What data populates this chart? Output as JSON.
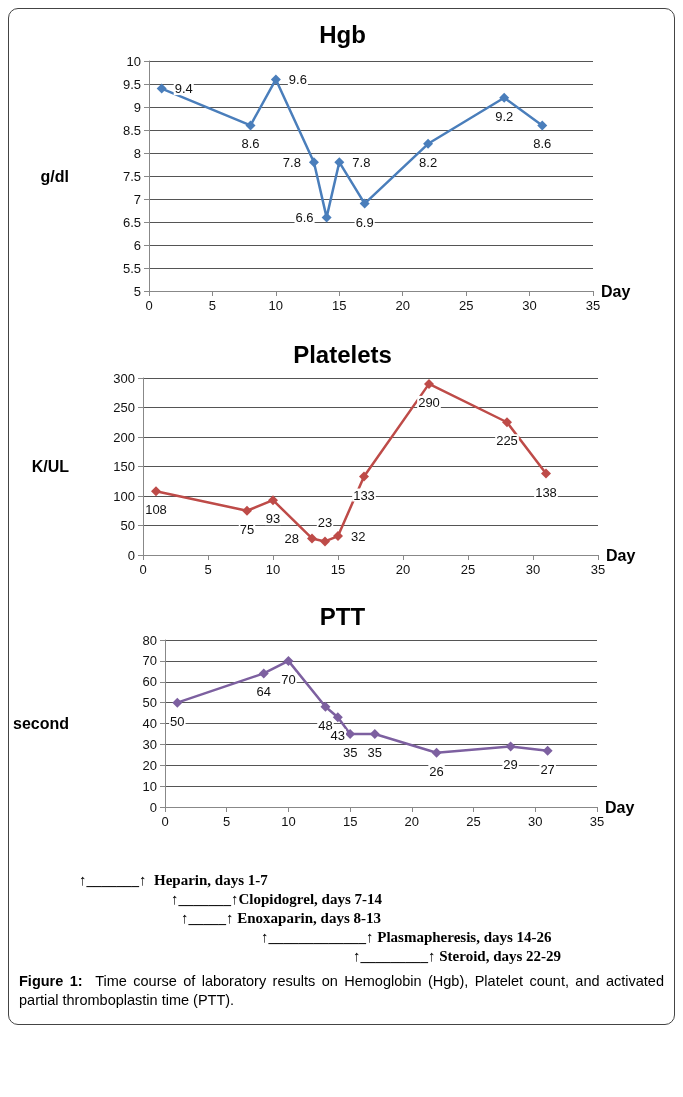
{
  "chart_data": [
    {
      "type": "line",
      "title": "Hgb",
      "ylabel": "g/dl",
      "xlabel": "Day",
      "x": [
        1,
        8,
        10,
        13,
        14,
        15,
        17,
        22,
        28,
        31
      ],
      "series": [
        {
          "color": "#4a7ebb",
          "values": [
            9.4,
            8.6,
            9.6,
            7.8,
            6.6,
            7.8,
            6.9,
            8.2,
            9.2,
            8.6
          ]
        }
      ],
      "xlim": [
        0,
        35
      ],
      "xticks": [
        0,
        5,
        10,
        15,
        20,
        25,
        30,
        35
      ],
      "ylim": [
        5,
        10
      ],
      "yticks": [
        5,
        5.5,
        6,
        6.5,
        7,
        7.5,
        8,
        8.5,
        9,
        9.5,
        10
      ],
      "grid": "y",
      "marker": "diamond",
      "line_style": "solid",
      "data_labels": true
    },
    {
      "type": "line",
      "title": "Platelets",
      "ylabel": "K/UL",
      "xlabel": "Day",
      "x": [
        1,
        8,
        10,
        13,
        14,
        15,
        17,
        22,
        28,
        31
      ],
      "series": [
        {
          "color": "#be4b48",
          "values": [
            108,
            75,
            93,
            28,
            23,
            32,
            133,
            290,
            225,
            138
          ]
        }
      ],
      "xlim": [
        0,
        35
      ],
      "xticks": [
        0,
        5,
        10,
        15,
        20,
        25,
        30,
        35
      ],
      "ylim": [
        0,
        300
      ],
      "yticks": [
        0,
        50,
        100,
        150,
        200,
        250,
        300
      ],
      "grid": "y",
      "marker": "diamond",
      "line_style": "solid",
      "data_labels": true
    },
    {
      "type": "line",
      "title": "PTT",
      "ylabel": "second",
      "xlabel": "Day",
      "x": [
        1,
        8,
        10,
        13,
        14,
        15,
        17,
        22,
        28,
        31
      ],
      "series": [
        {
          "color": "#7d60a0",
          "values": [
            50,
            64,
            70,
            48,
            43,
            35,
            35,
            26,
            29,
            27
          ]
        }
      ],
      "xlim": [
        0,
        35
      ],
      "xticks": [
        0,
        5,
        10,
        15,
        20,
        25,
        30,
        35
      ],
      "ylim": [
        0,
        80
      ],
      "yticks": [
        0,
        10,
        20,
        30,
        40,
        50,
        60,
        70,
        80
      ],
      "grid": "y",
      "marker": "diamond",
      "line_style": "solid",
      "data_labels": true,
      "annotations": [
        "↑_______↑  Heparin, days 1-7",
        "↑_______↑Clopidogrel, days 7-14",
        "↑_____↑ Enoxaparin, days 8-13",
        "↑_____________↑ Plasmapheresis, days 14-26",
        "↑_________↑ Steroid, days 22-29",
        "Figure 1:  Time course of laboratory results on Hemoglobin (Hgb), Platelet count, and activated partial thromboplastin time (PTT)."
      ]
    }
  ]
}
